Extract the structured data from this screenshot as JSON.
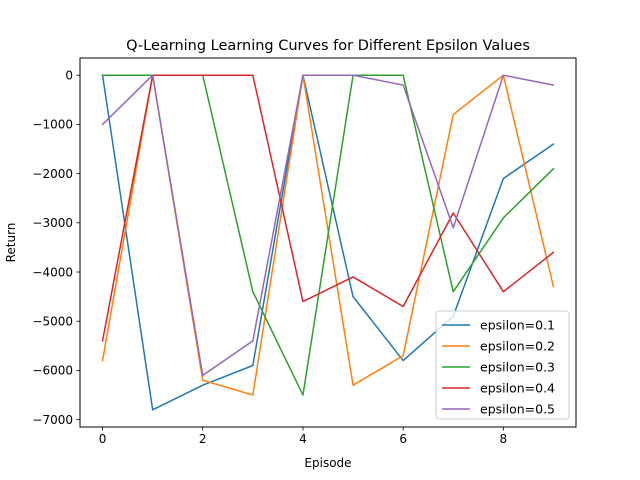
{
  "chart_data": {
    "type": "line",
    "title": "Q-Learning Learning Curves for Different Epsilon Values",
    "xlabel": "Episode",
    "ylabel": "Return",
    "x": [
      0,
      1,
      2,
      3,
      4,
      5,
      6,
      7,
      8,
      9
    ],
    "xlim": [
      -0.45,
      9.45
    ],
    "ylim": [
      -7150,
      350
    ],
    "xticks": [
      0,
      2,
      4,
      6,
      8
    ],
    "yticks": [
      0,
      -1000,
      -2000,
      -3000,
      -4000,
      -5000,
      -6000,
      -7000
    ],
    "xtick_labels": [
      "0",
      "2",
      "4",
      "6",
      "8"
    ],
    "ytick_labels": [
      "0",
      "−1000",
      "−2000",
      "−3000",
      "−4000",
      "−5000",
      "−6000",
      "−7000"
    ],
    "grid": false,
    "legend_position": "lower-right",
    "series": [
      {
        "name": "epsilon=0.1",
        "color": "#1f77b4",
        "values": [
          0,
          -6800,
          -6300,
          -5900,
          0,
          -4500,
          -5800,
          -4900,
          -2100,
          -1400
        ]
      },
      {
        "name": "epsilon=0.2",
        "color": "#ff7f0e",
        "values": [
          -5800,
          0,
          -6200,
          -6500,
          0,
          -6300,
          -5700,
          -800,
          0,
          -4300
        ]
      },
      {
        "name": "epsilon=0.3",
        "color": "#2ca02c",
        "values": [
          0,
          0,
          0,
          -4400,
          -6500,
          0,
          0,
          -4400,
          -2900,
          -1900
        ]
      },
      {
        "name": "epsilon=0.4",
        "color": "#d62728",
        "values": [
          -5400,
          0,
          0,
          0,
          -4600,
          -4100,
          -4700,
          -2800,
          -4400,
          -3600
        ]
      },
      {
        "name": "epsilon=0.5",
        "color": "#9467bd",
        "values": [
          -1000,
          0,
          -6100,
          -5400,
          0,
          0,
          -200,
          -3100,
          0,
          -200
        ]
      }
    ]
  }
}
